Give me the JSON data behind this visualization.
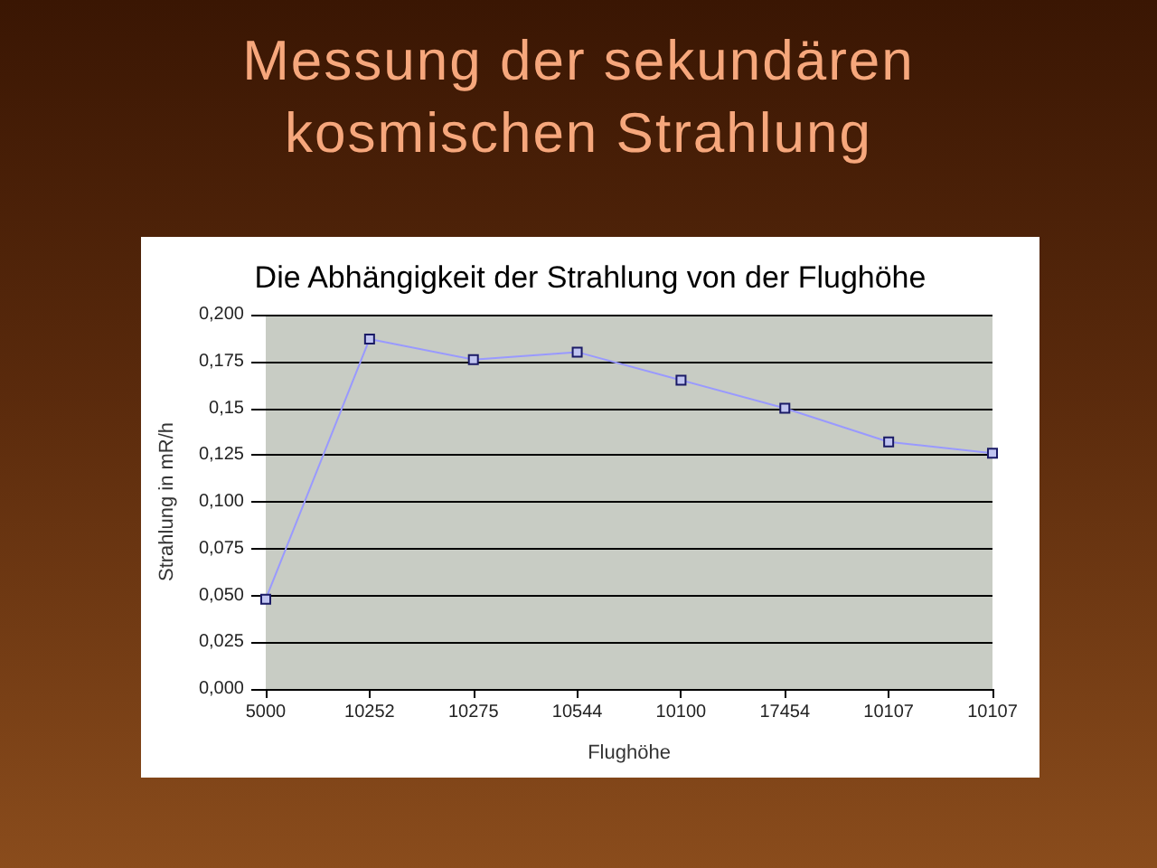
{
  "chart_data": {
    "type": "line",
    "title": "Messung der sekundären kosmischen Strahlung",
    "subtitle": "Die Abhängigkeit der Strahlung von der Flughöhe",
    "xlabel": "Flughöhe",
    "ylabel": "Strahlung in mR/h",
    "categories": [
      "5000",
      "10252",
      "10275",
      "10544",
      "10100",
      "17454",
      "10107",
      "10107"
    ],
    "values": [
      0.048,
      0.187,
      0.176,
      0.18,
      0.165,
      0.15,
      0.132,
      0.126
    ],
    "color": "#9999ff",
    "ylim": [
      0,
      0.2
    ],
    "yticks": [
      {
        "value": 0,
        "label": "0,000"
      },
      {
        "value": 0.025,
        "label": "0,025"
      },
      {
        "value": 0.05,
        "label": "0,050"
      },
      {
        "value": 0.075,
        "label": "0,075"
      },
      {
        "value": 0.1,
        "label": "0,100"
      },
      {
        "value": 0.125,
        "label": "0,125"
      },
      {
        "value": 0.15,
        "label": "0,15"
      },
      {
        "value": 0.175,
        "label": "0,175"
      },
      {
        "value": 0.2,
        "label": "0,200"
      }
    ],
    "grid": "y",
    "marker": "square",
    "line_style": "solid"
  }
}
